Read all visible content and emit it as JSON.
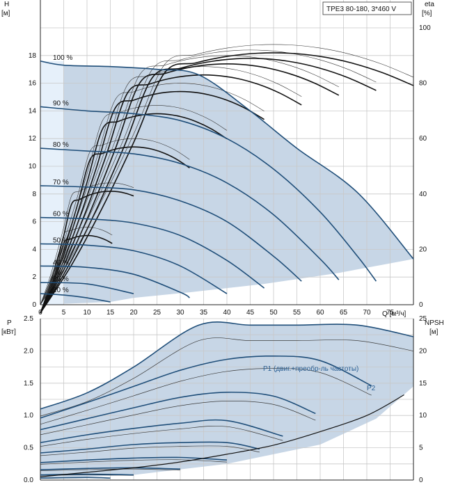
{
  "chart_data": [
    {
      "type": "line",
      "title": "TPE3 80-180, 3*460 V",
      "ylabel": "H",
      "ylabel_unit": "[м]",
      "y2label": "eta",
      "y2label_unit": "[%]",
      "xlabel": "Q [м³/ч]",
      "xlim": [
        0,
        80
      ],
      "ylim": [
        0,
        20
      ],
      "y2lim": [
        0,
        100
      ],
      "x_ticks": [
        "0",
        "5",
        "10",
        "15",
        "20",
        "25",
        "30",
        "35",
        "40",
        "45",
        "50",
        "55",
        "60",
        "65",
        "70",
        "75"
      ],
      "y_ticks": [
        "0",
        "2",
        "4",
        "6",
        "8",
        "10",
        "12",
        "14",
        "16",
        "18"
      ],
      "y2_ticks": [
        "0",
        "20",
        "40",
        "60",
        "80",
        "100"
      ],
      "grid": true,
      "speed_labels": [
        "100 %",
        "90 %",
        "80 %",
        "70 %",
        "60 %",
        "50 %",
        "40 %",
        "30 %",
        "20 %"
      ],
      "series": [
        {
          "name": "100 %",
          "x": [
            0,
            5,
            15,
            25,
            34,
            45,
            55,
            68,
            80
          ],
          "y": [
            17.6,
            17.3,
            17.2,
            17.0,
            16.6,
            14.0,
            11.3,
            8.1,
            3.3
          ]
        },
        {
          "name": "90 %",
          "x": [
            0,
            10,
            20,
            30,
            40,
            50,
            60,
            68,
            72
          ],
          "y": [
            14.3,
            14.0,
            13.8,
            13.3,
            12.0,
            9.8,
            6.7,
            3.5,
            1.7
          ]
        },
        {
          "name": "80 %",
          "x": [
            0,
            10,
            20,
            30,
            40,
            50,
            60,
            64
          ],
          "y": [
            11.3,
            11.1,
            10.9,
            10.2,
            8.8,
            6.5,
            3.3,
            1.8
          ]
        },
        {
          "name": "70 %",
          "x": [
            0,
            10,
            20,
            30,
            40,
            50,
            56
          ],
          "y": [
            8.6,
            8.5,
            8.3,
            7.5,
            6.0,
            3.5,
            1.7
          ]
        },
        {
          "name": "60 %",
          "x": [
            0,
            10,
            20,
            30,
            40,
            48
          ],
          "y": [
            6.3,
            6.2,
            5.9,
            5.0,
            3.2,
            1.2
          ]
        },
        {
          "name": "50 %",
          "x": [
            0,
            10,
            20,
            30,
            40
          ],
          "y": [
            4.4,
            4.3,
            3.9,
            2.8,
            0.8
          ]
        },
        {
          "name": "40 %",
          "x": [
            0,
            10,
            20,
            30,
            32
          ],
          "y": [
            2.8,
            2.7,
            2.2,
            0.9,
            0.5
          ]
        },
        {
          "name": "30 %",
          "x": [
            0,
            10,
            20
          ],
          "y": [
            1.6,
            1.5,
            0.8
          ]
        },
        {
          "name": "20 %",
          "x": [
            0,
            5,
            10,
            15
          ],
          "y": [
            0.8,
            0.7,
            0.5,
            0.2
          ]
        }
      ],
      "eta_curves": [
        {
          "peak_q": 10,
          "end_q": 15.4,
          "end_eta": 13,
          "peak_eta": 14
        },
        {
          "peak_q": 15,
          "end_q": 20,
          "end_eta": 17,
          "peak_eta": 22
        },
        {
          "peak_q": 20,
          "end_q": 32,
          "end_eta": 27,
          "peak_eta": 30
        },
        {
          "peak_q": 25,
          "end_q": 40,
          "end_eta": 30,
          "peak_eta": 36
        },
        {
          "peak_q": 30,
          "end_q": 48,
          "end_eta": 33,
          "peak_eta": 40
        },
        {
          "peak_q": 35,
          "end_q": 56,
          "end_eta": 32,
          "peak_eta": 43
        },
        {
          "peak_q": 40,
          "end_q": 64,
          "end_eta": 32,
          "peak_eta": 45
        },
        {
          "peak_q": 45,
          "end_q": 72,
          "end_eta": 32,
          "peak_eta": 46
        },
        {
          "peak_q": 50,
          "end_q": 80,
          "end_eta": 38,
          "peak_eta": 47
        }
      ]
    },
    {
      "type": "line",
      "ylabel": "P",
      "ylabel_unit": "[кВт]",
      "y2label": "NPSH",
      "y2label_unit": "[м]",
      "xlim": [
        0,
        80
      ],
      "ylim": [
        0,
        2.5
      ],
      "y2lim": [
        0,
        25
      ],
      "y_ticks": [
        "0.0",
        "0.5",
        "1.0",
        "1.5",
        "2.0",
        "2.5"
      ],
      "y2_ticks": [
        "0",
        "5",
        "10",
        "15",
        "20",
        "25"
      ],
      "grid": true,
      "annotations": [
        "P1 (двиг.+преобр-ль частоты)",
        "P2"
      ],
      "series": [
        {
          "name": "P1 (двиг.+преобр-ль частоты)",
          "x": [
            0,
            10,
            20,
            34,
            45,
            55,
            68,
            80
          ],
          "y": [
            1.1,
            1.35,
            1.75,
            2.4,
            2.4,
            2.4,
            2.4,
            2.22
          ]
        },
        {
          "x": [
            0,
            10,
            20,
            30,
            40,
            50,
            60,
            71
          ],
          "y": [
            0.96,
            1.2,
            1.45,
            1.7,
            1.87,
            1.92,
            1.85,
            1.46
          ]
        },
        {
          "x": [
            0,
            10,
            20,
            30,
            40,
            50,
            59
          ],
          "y": [
            0.78,
            0.95,
            1.12,
            1.28,
            1.36,
            1.3,
            1.03
          ]
        },
        {
          "x": [
            0,
            10,
            20,
            30,
            40,
            52
          ],
          "y": [
            0.58,
            0.7,
            0.8,
            0.88,
            0.92,
            0.68
          ]
        },
        {
          "x": [
            0,
            10,
            20,
            30,
            40,
            47
          ],
          "y": [
            0.42,
            0.48,
            0.55,
            0.58,
            0.58,
            0.48
          ]
        },
        {
          "x": [
            0,
            10,
            20,
            30,
            40
          ],
          "y": [
            0.27,
            0.31,
            0.34,
            0.35,
            0.31
          ]
        },
        {
          "x": [
            0,
            10,
            20,
            30
          ],
          "y": [
            0.16,
            0.18,
            0.19,
            0.17
          ]
        },
        {
          "x": [
            0,
            10,
            20
          ],
          "y": [
            0.08,
            0.09,
            0.08
          ]
        },
        {
          "x": [
            0,
            10,
            15
          ],
          "y": [
            0.03,
            0.04,
            0.03
          ]
        }
      ],
      "npsh": {
        "x": [
          0,
          10,
          20,
          30,
          40,
          50,
          60,
          70,
          78
        ],
        "y": [
          0.5,
          1.2,
          1.9,
          2.8,
          4.0,
          5.4,
          7.5,
          10.0,
          13.2
        ]
      }
    }
  ]
}
